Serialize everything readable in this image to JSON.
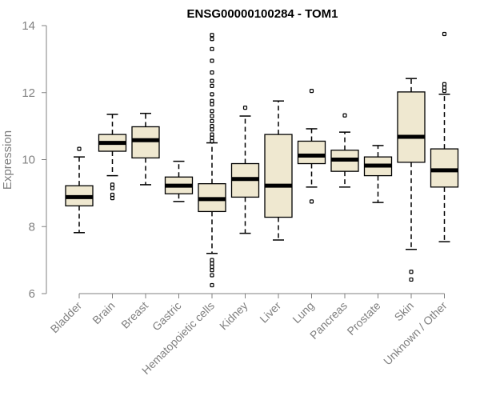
{
  "chart_data": {
    "type": "boxplot",
    "title": "ENSG00000100284 - TOM1",
    "xlabel": "",
    "ylabel": "Expression",
    "ylim": [
      6,
      14
    ],
    "yticks": [
      6,
      8,
      10,
      12,
      14
    ],
    "grid": false,
    "colors": {
      "box_fill": "#efe8d0",
      "box_stroke": "#000000",
      "axis": "#808080"
    },
    "categories": [
      "Bladder",
      "Brain",
      "Breast",
      "Gastric",
      "Hematopoietic cells",
      "Kidney",
      "Liver",
      "Lung",
      "Pancreas",
      "Prostate",
      "Skin",
      "Unknown / Other"
    ],
    "boxes": [
      {
        "category": "Bladder",
        "whisker_low": 7.82,
        "q1": 8.62,
        "median": 8.88,
        "q3": 9.22,
        "whisker_high": 10.08,
        "outliers": [
          10.32
        ]
      },
      {
        "category": "Brain",
        "whisker_low": 9.52,
        "q1": 10.25,
        "median": 10.5,
        "q3": 10.75,
        "whisker_high": 11.35,
        "outliers": [
          9.25,
          9.15,
          8.95,
          8.85
        ]
      },
      {
        "category": "Breast",
        "whisker_low": 9.25,
        "q1": 10.05,
        "median": 10.58,
        "q3": 10.98,
        "whisker_high": 11.38,
        "outliers": []
      },
      {
        "category": "Gastric",
        "whisker_low": 8.75,
        "q1": 8.98,
        "median": 9.22,
        "q3": 9.48,
        "whisker_high": 9.95,
        "outliers": []
      },
      {
        "category": "Hematopoietic cells",
        "whisker_low": 7.2,
        "q1": 8.45,
        "median": 8.82,
        "q3": 9.28,
        "whisker_high": 10.5,
        "outliers": [
          13.72,
          13.6,
          13.3,
          12.95,
          12.6,
          12.35,
          12.2,
          11.95,
          11.75,
          11.65,
          11.45,
          11.3,
          11.15,
          11.0,
          10.9,
          10.75,
          10.65,
          10.55,
          7.0,
          6.9,
          6.8,
          6.7,
          6.55,
          6.25
        ]
      },
      {
        "category": "Kidney",
        "whisker_low": 7.8,
        "q1": 8.88,
        "median": 9.42,
        "q3": 9.88,
        "whisker_high": 11.3,
        "outliers": [
          11.55
        ]
      },
      {
        "category": "Liver",
        "whisker_low": 7.6,
        "q1": 8.28,
        "median": 9.22,
        "q3": 10.75,
        "whisker_high": 11.75,
        "outliers": []
      },
      {
        "category": "Lung",
        "whisker_low": 9.18,
        "q1": 9.88,
        "median": 10.12,
        "q3": 10.55,
        "whisker_high": 10.92,
        "outliers": [
          12.05,
          8.75
        ]
      },
      {
        "category": "Pancreas",
        "whisker_low": 9.18,
        "q1": 9.65,
        "median": 10.0,
        "q3": 10.28,
        "whisker_high": 10.82,
        "outliers": [
          11.32
        ]
      },
      {
        "category": "Prostate",
        "whisker_low": 8.72,
        "q1": 9.52,
        "median": 9.82,
        "q3": 10.08,
        "whisker_high": 10.42,
        "outliers": []
      },
      {
        "category": "Skin",
        "whisker_low": 7.32,
        "q1": 9.92,
        "median": 10.68,
        "q3": 12.02,
        "whisker_high": 12.42,
        "outliers": [
          6.65,
          6.42
        ]
      },
      {
        "category": "Unknown / Other",
        "whisker_low": 7.55,
        "q1": 9.18,
        "median": 9.68,
        "q3": 10.32,
        "whisker_high": 11.95,
        "outliers": [
          13.75,
          12.25,
          12.15,
          12.05
        ]
      }
    ]
  }
}
